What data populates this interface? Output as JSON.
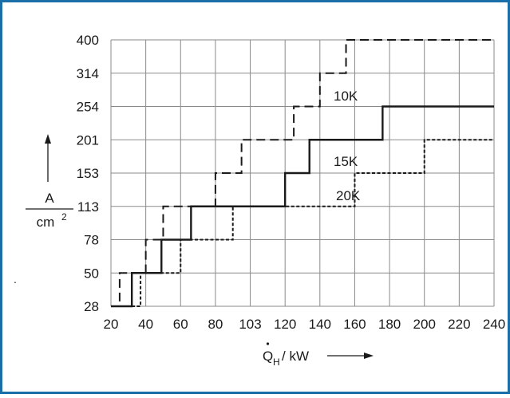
{
  "colors": {
    "frame": "#1a6fa8",
    "grid": "#8a8a8a",
    "ink": "#1a1a1a"
  },
  "chart_data": {
    "type": "line",
    "title": "",
    "xlabel": "Q̇H/kW",
    "ylabel": "A/cm2",
    "ylabel_parts": {
      "top": "A",
      "bottom": "cm",
      "sup": "2"
    },
    "xlabel_parts": {
      "q": "Q",
      "sub": "H",
      "unit": "/ kW"
    },
    "x_ticks": [
      "20",
      "40",
      "60",
      "80",
      "103",
      "120",
      "140",
      "160",
      "180",
      "200",
      "220",
      "240"
    ],
    "y_ticks": [
      "28",
      "50",
      "78",
      "113",
      "153",
      "201",
      "254",
      "314",
      "400"
    ],
    "grid": true,
    "series": [
      {
        "name": "10K",
        "style": "dashed",
        "steps": [
          {
            "x0": 20,
            "x1": 25,
            "y": "28"
          },
          {
            "x0": 25,
            "x1": 40,
            "y": "50"
          },
          {
            "x0": 40,
            "x1": 50,
            "y": "78"
          },
          {
            "x0": 50,
            "x1": 80,
            "y": "113"
          },
          {
            "x0": 80,
            "x1": 95,
            "y": "153"
          },
          {
            "x0": 95,
            "x1": 125,
            "y": "201"
          },
          {
            "x0": 125,
            "x1": 140,
            "y": "254"
          },
          {
            "x0": 140,
            "x1": 155,
            "y": "314"
          },
          {
            "x0": 155,
            "x1": 240,
            "y": "400"
          }
        ]
      },
      {
        "name": "15K",
        "style": "solid",
        "steps": [
          {
            "x0": 20,
            "x1": 32,
            "y": "28"
          },
          {
            "x0": 32,
            "x1": 49,
            "y": "50"
          },
          {
            "x0": 49,
            "x1": 66,
            "y": "78"
          },
          {
            "x0": 66,
            "x1": 120,
            "y": "113"
          },
          {
            "x0": 120,
            "x1": 134,
            "y": "153"
          },
          {
            "x0": 134,
            "x1": 176,
            "y": "201"
          },
          {
            "x0": 176,
            "x1": 240,
            "y": "254"
          }
        ]
      },
      {
        "name": "20K",
        "style": "dotted",
        "steps": [
          {
            "x0": 20,
            "x1": 37,
            "y": "28"
          },
          {
            "x0": 37,
            "x1": 60,
            "y": "50"
          },
          {
            "x0": 60,
            "x1": 90,
            "y": "78"
          },
          {
            "x0": 90,
            "x1": 160,
            "y": "113"
          },
          {
            "x0": 160,
            "x1": 200,
            "y": "153"
          },
          {
            "x0": 200,
            "x1": 240,
            "y": "201"
          }
        ]
      }
    ]
  }
}
